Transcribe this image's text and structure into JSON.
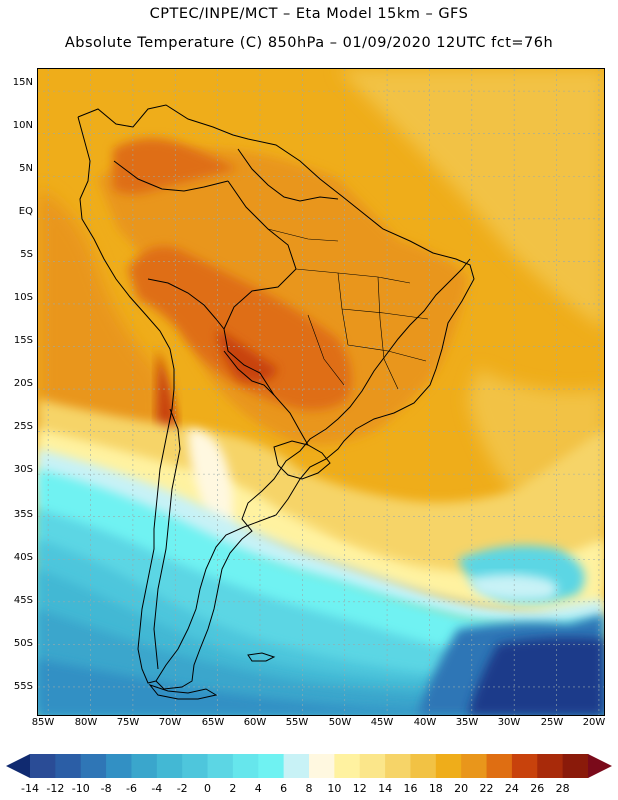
{
  "header": {
    "line1": "CPTEC/INPE/MCT –  Eta Model 15km – GFS",
    "line2": "Absolute Temperature (C) 850hPa – 01/09/2020 12UTC fct=76h"
  },
  "axes": {
    "lat_labels": [
      "15N",
      "10N",
      "5N",
      "EQ",
      "5S",
      "10S",
      "15S",
      "20S",
      "25S",
      "30S",
      "35S",
      "40S",
      "45S",
      "50S",
      "55S"
    ],
    "lon_labels": [
      "85W",
      "80W",
      "75W",
      "70W",
      "65W",
      "60W",
      "55W",
      "50W",
      "45W",
      "40W",
      "35W",
      "30W",
      "25W",
      "20W"
    ],
    "lat_range": [
      -58.3,
      17.6
    ],
    "lon_range": [
      -86.2,
      -19.4
    ]
  },
  "colorbar": {
    "levels": [
      "-14",
      "-12",
      "-10",
      "-8",
      "-6",
      "-4",
      "-2",
      "0",
      "2",
      "4",
      "6",
      "8",
      "10",
      "12",
      "14",
      "16",
      "18",
      "20",
      "22",
      "24",
      "26",
      "28"
    ],
    "colors": [
      "#2a4c96",
      "#2b5ea6",
      "#2f76b6",
      "#3290c4",
      "#3aa6cc",
      "#43b8d4",
      "#4ec6dc",
      "#5cd6e4",
      "#66e6ec",
      "#6ff2f2",
      "#c8f2f6",
      "#fff8e0",
      "#fff2a0",
      "#fbe68a",
      "#f6d468",
      "#f2c244",
      "#efad1a",
      "#e9961b",
      "#df6e12",
      "#c8420c",
      "#a82a0a",
      "#8a1a0a"
    ],
    "under_color": "#102a70",
    "over_color": "#7a0a1a"
  },
  "colors": {
    "ocean_warm": "#efad1a",
    "land_hot": "#df6e12",
    "cold_core": "#1a3a8a"
  }
}
